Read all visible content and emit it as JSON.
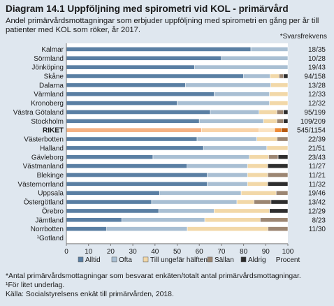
{
  "header": {
    "title": "Diagram 14.1 Uppföljning med spirometri vid KOL - primärvård",
    "subtitle": "Andel primärvårdsmottagningar som erbjuder uppföljning med spirometri en gång per år till patienter med KOL som röker, år 2017.",
    "star_note": "*Svarsfrekvens"
  },
  "footnotes": {
    "line1": "*Antal primärvårdsmottagningar som besvarat enkäten/totalt antal primärvårdsmottagningar.",
    "line2": "¹För litet underlag.",
    "line3": "Källa: Socialstyrelsens enkät till primärvården, 2018."
  },
  "chart_data": {
    "type": "bar",
    "orientation": "horizontal",
    "stacked": true,
    "title": "Diagram 14.1 Uppföljning med spirometri vid KOL - primärvård",
    "xlabel": "Procent",
    "xlim": [
      0,
      100
    ],
    "xticks": [
      0,
      10,
      20,
      30,
      40,
      50,
      60,
      70,
      80,
      90,
      100
    ],
    "grid": false,
    "legend_position": "bottom",
    "categories": [
      "Kalmar",
      "Sörmland",
      "Jönköping",
      "Skåne",
      "Dalarna",
      "Värmland",
      "Kronoberg",
      "Västra Götaland",
      "Stockholm",
      "RIKET",
      "Västerbotten",
      "Halland",
      "Gävleborg",
      "Västmanland",
      "Blekinge",
      "Västernorrland",
      "Uppsala",
      "Östergötland",
      "Örebro",
      "Jämtland",
      "Norrbotten",
      "¹Gotland"
    ],
    "response_rates": [
      "18/35",
      "10/28",
      "19/43",
      "94/158",
      "13/28",
      "12/33",
      "12/32",
      "95/199",
      "109/209",
      "545/1154",
      "22/39",
      "21/51",
      "23/43",
      "11/27",
      "11/21",
      "11/32",
      "19/46",
      "13/42",
      "12/29",
      "8/23",
      "11/30",
      ""
    ],
    "series": [
      {
        "name": "Alltid",
        "color": "#5a7fa3",
        "values": [
          83.3,
          70,
          57.9,
          80,
          53.8,
          66.7,
          50,
          65,
          60,
          61,
          59,
          61.9,
          39.1,
          54.5,
          63.6,
          63.6,
          42.1,
          38.5,
          41.7,
          25,
          18.2,
          null
        ]
      },
      {
        "name": "Ofta",
        "color": "#a9bfd3",
        "values": [
          16.7,
          30,
          42.1,
          12,
          38.5,
          25,
          41.7,
          22,
          29,
          26,
          27,
          28.6,
          43.5,
          27.3,
          18.2,
          18.2,
          36.8,
          38.5,
          25,
          37.5,
          36.4,
          null
        ]
      },
      {
        "name": "Till ungefär hälften",
        "color": "#f2d8a8",
        "values": [
          0,
          0,
          0,
          4,
          7.7,
          8.3,
          8.3,
          8,
          6,
          7,
          9.1,
          9.5,
          8.7,
          9.1,
          9.1,
          9.1,
          15.8,
          7.7,
          25,
          25,
          36.4,
          null
        ]
      },
      {
        "name": "Sällan",
        "color": "#9c8672",
        "values": [
          0,
          0,
          0,
          2,
          0,
          0,
          0,
          3,
          3,
          3,
          4.9,
          0,
          4.3,
          0,
          9.1,
          0,
          5.3,
          7.7,
          0,
          12.5,
          9,
          null
        ]
      },
      {
        "name": "Aldrig",
        "color": "#2e2e2e",
        "values": [
          0,
          0,
          0,
          2,
          0,
          0,
          0,
          2,
          2,
          3,
          0,
          0,
          4.4,
          9.1,
          0,
          9.1,
          0,
          7.6,
          8.3,
          0,
          0,
          null
        ]
      }
    ],
    "highlight_category": "RIKET",
    "highlight_colors": [
      "#f4b183",
      "#f9d3a8",
      "#fbe3c2",
      "#ee8a36",
      "#b85b12"
    ]
  }
}
